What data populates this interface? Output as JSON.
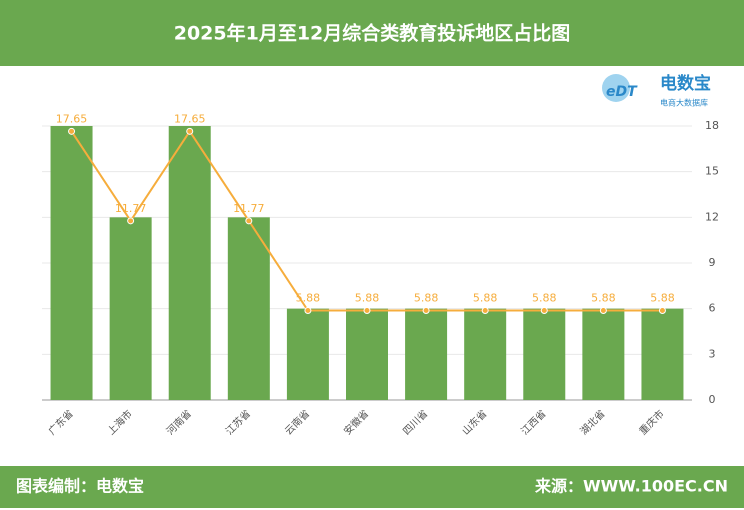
{
  "chart_data": {
    "type": "bar",
    "title": "2025年1月至12月综合类教育投诉地区占比图",
    "categories": [
      "广东省",
      "上海市",
      "河南省",
      "江苏省",
      "云南省",
      "安徽省",
      "四川省",
      "山东省",
      "江西省",
      "湖北省",
      "重庆市"
    ],
    "series": [
      {
        "type": "bar",
        "color": "#6aa84f",
        "values": [
          18,
          12,
          18,
          12,
          6,
          6,
          6,
          6,
          6,
          6,
          6
        ]
      },
      {
        "type": "line",
        "color": "#f6ad3c",
        "values": [
          17.65,
          11.77,
          17.65,
          11.77,
          5.88,
          5.88,
          5.88,
          5.88,
          5.88,
          5.88,
          5.88
        ]
      }
    ],
    "ylim": [
      0,
      18
    ],
    "yticks": [
      0,
      3,
      6,
      9,
      12,
      15,
      18
    ],
    "grid": true
  },
  "logo": {
    "name": "电数宝",
    "tagline": "电商大数据库"
  },
  "footer": {
    "left": "图表编制：电数宝",
    "right": "来源：WWW.100EC.CN"
  }
}
